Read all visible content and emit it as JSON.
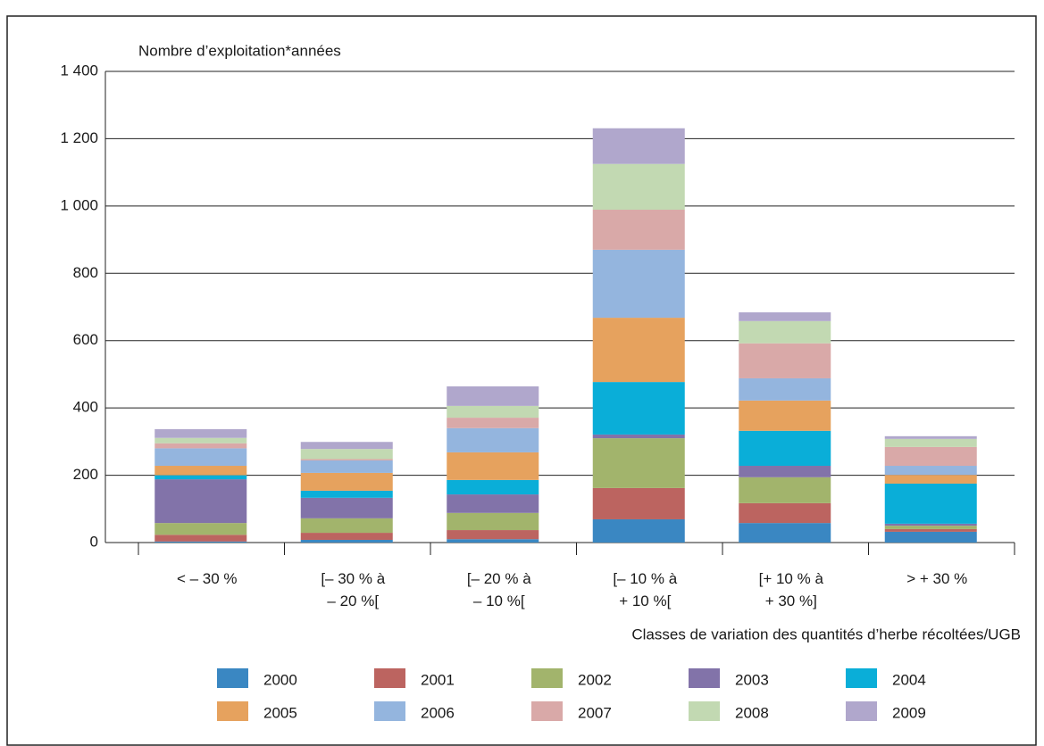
{
  "chart_data": {
    "type": "stacked_bar",
    "y_label": "Nombre d’exploitation*années",
    "x_label": "Classes de variation des quantités d’herbe récoltées/UGB",
    "categories": [
      "< – 30 %",
      "[– 30 % à\n– 20 %[",
      "[– 20 % à\n– 10 %[",
      "[– 10 % à\n+ 10 %[",
      "[+ 10 % à\n+ 30 %]",
      "> + 30 %"
    ],
    "series": [
      {
        "name": "2000",
        "color": "#3a87c2",
        "values": [
          3,
          8,
          10,
          69,
          58,
          32
        ]
      },
      {
        "name": "2001",
        "color": "#bc6460",
        "values": [
          20,
          21,
          27,
          93,
          59,
          8
        ]
      },
      {
        "name": "2002",
        "color": "#a2b46c",
        "values": [
          35,
          43,
          51,
          148,
          77,
          10
        ]
      },
      {
        "name": "2003",
        "color": "#8273a9",
        "values": [
          130,
          61,
          55,
          11,
          34,
          6
        ]
      },
      {
        "name": "2004",
        "color": "#0aaed8",
        "values": [
          12,
          21,
          43,
          156,
          104,
          119
        ]
      },
      {
        "name": "2005",
        "color": "#e6a25e",
        "values": [
          28,
          53,
          82,
          191,
          90,
          26
        ]
      },
      {
        "name": "2006",
        "color": "#94b5de",
        "values": [
          52,
          37,
          72,
          202,
          66,
          27
        ]
      },
      {
        "name": "2007",
        "color": "#d9a9a8",
        "values": [
          15,
          4,
          31,
          119,
          104,
          56
        ]
      },
      {
        "name": "2008",
        "color": "#c2d9b2",
        "values": [
          16,
          30,
          35,
          136,
          66,
          24
        ]
      },
      {
        "name": "2009",
        "color": "#b0a7cc",
        "values": [
          26,
          21,
          58,
          106,
          26,
          8
        ]
      }
    ],
    "ylim": [
      0,
      1400
    ],
    "yticks": [
      0,
      200,
      400,
      600,
      800,
      {
        "value": 1000,
        "label": "1 000"
      },
      {
        "value": 1200,
        "label": "1 200"
      },
      {
        "value": 1400,
        "label": "1 400"
      }
    ],
    "grid": true
  }
}
